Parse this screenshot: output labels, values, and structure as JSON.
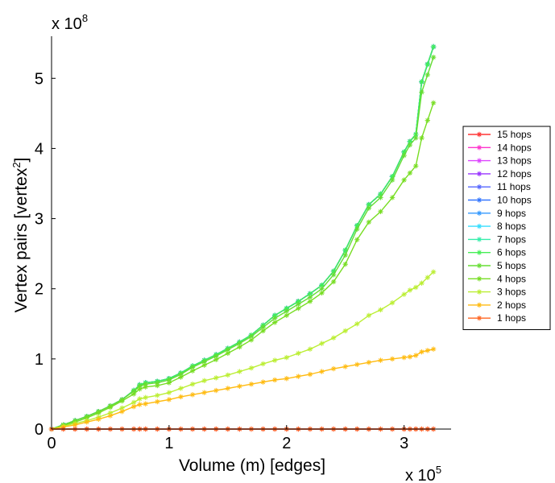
{
  "chart_data": {
    "type": "line",
    "title": "",
    "xlabel": "Volume (m) [edges]",
    "ylabel": "Vertex pairs [vertex",
    "ylabel_sup": "2",
    "ylabel_end": "]",
    "x_exponent_label": "x 10",
    "x_exponent": "5",
    "y_exponent_label": "x 10",
    "y_exponent": "8",
    "xlim": [
      0,
      3.4
    ],
    "ylim": [
      0,
      5.6
    ],
    "xticks": [
      0,
      1,
      2,
      3
    ],
    "xtick_labels": [
      "0",
      "1",
      "2",
      "3"
    ],
    "yticks": [
      0,
      1,
      2,
      3,
      4,
      5
    ],
    "ytick_labels": [
      "0",
      "1",
      "2",
      "3",
      "4",
      "5"
    ],
    "x": [
      0,
      0.1,
      0.2,
      0.3,
      0.4,
      0.5,
      0.6,
      0.7,
      0.75,
      0.8,
      0.9,
      1.0,
      1.1,
      1.2,
      1.3,
      1.4,
      1.5,
      1.6,
      1.7,
      1.8,
      1.9,
      2.0,
      2.1,
      2.2,
      2.3,
      2.4,
      2.5,
      2.6,
      2.7,
      2.8,
      2.9,
      3.0,
      3.05,
      3.1,
      3.15,
      3.2,
      3.25
    ],
    "series": [
      {
        "name": "15 hops",
        "color": "#ff3333",
        "values": [
          0,
          0,
          0,
          0,
          0,
          0,
          0,
          0,
          0,
          0,
          0,
          0,
          0,
          0,
          0,
          0,
          0,
          0,
          0,
          0,
          0,
          0,
          0,
          0,
          0,
          0,
          0,
          0,
          0,
          0,
          0,
          0,
          0,
          0,
          0,
          0,
          0
        ]
      },
      {
        "name": "14 hops",
        "color": "#ff33cc",
        "values": [
          0,
          0.06,
          0.12,
          0.18,
          0.25,
          0.33,
          0.42,
          0.55,
          0.63,
          0.66,
          0.68,
          0.72,
          0.8,
          0.9,
          0.98,
          1.06,
          1.15,
          1.24,
          1.34,
          1.48,
          1.62,
          1.72,
          1.82,
          1.93,
          2.05,
          2.25,
          2.55,
          2.9,
          3.2,
          3.35,
          3.6,
          3.95,
          4.1,
          4.2,
          4.95,
          5.2,
          5.45
        ]
      },
      {
        "name": "13 hops",
        "color": "#dd44ff",
        "values": [
          0,
          0.06,
          0.12,
          0.18,
          0.25,
          0.33,
          0.42,
          0.55,
          0.63,
          0.66,
          0.68,
          0.72,
          0.8,
          0.9,
          0.98,
          1.06,
          1.15,
          1.24,
          1.34,
          1.48,
          1.62,
          1.72,
          1.82,
          1.93,
          2.05,
          2.25,
          2.55,
          2.9,
          3.2,
          3.35,
          3.6,
          3.95,
          4.1,
          4.2,
          4.95,
          5.2,
          5.45
        ]
      },
      {
        "name": "12 hops",
        "color": "#9933ff",
        "values": [
          0,
          0.06,
          0.12,
          0.18,
          0.25,
          0.33,
          0.42,
          0.55,
          0.63,
          0.66,
          0.68,
          0.72,
          0.8,
          0.9,
          0.98,
          1.06,
          1.15,
          1.24,
          1.34,
          1.48,
          1.62,
          1.72,
          1.82,
          1.93,
          2.05,
          2.25,
          2.55,
          2.9,
          3.2,
          3.35,
          3.6,
          3.95,
          4.1,
          4.2,
          4.95,
          5.2,
          5.45
        ]
      },
      {
        "name": "11 hops",
        "color": "#5566ff",
        "values": [
          0,
          0.06,
          0.12,
          0.18,
          0.25,
          0.33,
          0.42,
          0.55,
          0.63,
          0.66,
          0.68,
          0.72,
          0.8,
          0.9,
          0.98,
          1.06,
          1.15,
          1.24,
          1.34,
          1.48,
          1.62,
          1.72,
          1.82,
          1.93,
          2.05,
          2.25,
          2.55,
          2.9,
          3.2,
          3.35,
          3.6,
          3.95,
          4.1,
          4.2,
          4.95,
          5.2,
          5.45
        ]
      },
      {
        "name": "10 hops",
        "color": "#3377ff",
        "values": [
          0,
          0.06,
          0.12,
          0.18,
          0.25,
          0.33,
          0.42,
          0.55,
          0.63,
          0.66,
          0.68,
          0.72,
          0.8,
          0.9,
          0.98,
          1.06,
          1.15,
          1.24,
          1.34,
          1.48,
          1.62,
          1.72,
          1.82,
          1.93,
          2.05,
          2.25,
          2.55,
          2.9,
          3.2,
          3.35,
          3.6,
          3.95,
          4.1,
          4.2,
          4.95,
          5.2,
          5.45
        ]
      },
      {
        "name": "9 hops",
        "color": "#3399ff",
        "values": [
          0,
          0.06,
          0.12,
          0.18,
          0.25,
          0.33,
          0.42,
          0.55,
          0.63,
          0.66,
          0.68,
          0.72,
          0.8,
          0.9,
          0.98,
          1.06,
          1.15,
          1.24,
          1.34,
          1.48,
          1.62,
          1.72,
          1.82,
          1.93,
          2.05,
          2.25,
          2.55,
          2.9,
          3.2,
          3.35,
          3.6,
          3.95,
          4.1,
          4.2,
          4.95,
          5.2,
          5.45
        ]
      },
      {
        "name": "8 hops",
        "color": "#33ddff",
        "values": [
          0,
          0.06,
          0.12,
          0.18,
          0.25,
          0.33,
          0.42,
          0.55,
          0.63,
          0.66,
          0.68,
          0.72,
          0.8,
          0.9,
          0.98,
          1.06,
          1.15,
          1.24,
          1.34,
          1.48,
          1.62,
          1.72,
          1.82,
          1.93,
          2.05,
          2.25,
          2.55,
          2.9,
          3.2,
          3.35,
          3.6,
          3.95,
          4.1,
          4.2,
          4.95,
          5.2,
          5.45
        ]
      },
      {
        "name": "7 hops",
        "color": "#33eeaa",
        "values": [
          0,
          0.06,
          0.12,
          0.18,
          0.25,
          0.33,
          0.42,
          0.55,
          0.63,
          0.66,
          0.68,
          0.72,
          0.8,
          0.9,
          0.98,
          1.06,
          1.15,
          1.24,
          1.34,
          1.48,
          1.62,
          1.72,
          1.82,
          1.93,
          2.05,
          2.25,
          2.55,
          2.9,
          3.2,
          3.35,
          3.6,
          3.95,
          4.1,
          4.2,
          4.95,
          5.2,
          5.45
        ]
      },
      {
        "name": "6 hops",
        "color": "#44ee55",
        "values": [
          0,
          0.06,
          0.12,
          0.18,
          0.25,
          0.33,
          0.42,
          0.55,
          0.63,
          0.66,
          0.68,
          0.72,
          0.8,
          0.9,
          0.98,
          1.06,
          1.15,
          1.24,
          1.34,
          1.48,
          1.62,
          1.72,
          1.82,
          1.93,
          2.05,
          2.25,
          2.55,
          2.9,
          3.2,
          3.35,
          3.6,
          3.95,
          4.1,
          4.2,
          4.95,
          5.2,
          5.45
        ]
      },
      {
        "name": "5 hops",
        "color": "#66dd33",
        "values": [
          0,
          0.06,
          0.12,
          0.18,
          0.25,
          0.33,
          0.42,
          0.54,
          0.61,
          0.64,
          0.66,
          0.7,
          0.78,
          0.88,
          0.96,
          1.04,
          1.13,
          1.22,
          1.32,
          1.45,
          1.58,
          1.68,
          1.78,
          1.88,
          2.0,
          2.2,
          2.48,
          2.85,
          3.15,
          3.3,
          3.55,
          3.9,
          4.05,
          4.15,
          4.8,
          5.05,
          5.3
        ]
      },
      {
        "name": "4 hops",
        "color": "#77dd22",
        "values": [
          0,
          0.05,
          0.1,
          0.16,
          0.23,
          0.31,
          0.4,
          0.5,
          0.57,
          0.6,
          0.62,
          0.66,
          0.74,
          0.83,
          0.91,
          0.99,
          1.08,
          1.17,
          1.27,
          1.4,
          1.52,
          1.62,
          1.72,
          1.82,
          1.94,
          2.1,
          2.35,
          2.7,
          2.95,
          3.1,
          3.3,
          3.55,
          3.65,
          3.75,
          4.15,
          4.4,
          4.65
        ]
      },
      {
        "name": "3 hops",
        "color": "#bbee33",
        "values": [
          0,
          0.04,
          0.08,
          0.12,
          0.17,
          0.23,
          0.3,
          0.38,
          0.43,
          0.45,
          0.48,
          0.52,
          0.58,
          0.64,
          0.69,
          0.73,
          0.77,
          0.82,
          0.87,
          0.93,
          0.98,
          1.02,
          1.08,
          1.14,
          1.22,
          1.3,
          1.4,
          1.5,
          1.62,
          1.7,
          1.8,
          1.92,
          1.98,
          2.02,
          2.08,
          2.16,
          2.24
        ]
      },
      {
        "name": "2 hops",
        "color": "#ffbb11",
        "values": [
          0,
          0.03,
          0.06,
          0.1,
          0.14,
          0.19,
          0.25,
          0.32,
          0.35,
          0.36,
          0.39,
          0.42,
          0.46,
          0.49,
          0.52,
          0.55,
          0.58,
          0.61,
          0.64,
          0.67,
          0.7,
          0.72,
          0.75,
          0.78,
          0.82,
          0.86,
          0.89,
          0.92,
          0.95,
          0.98,
          1.0,
          1.02,
          1.03,
          1.05,
          1.1,
          1.12,
          1.14
        ]
      },
      {
        "name": "1 hops",
        "color": "#ff6622",
        "values": [
          0,
          0,
          0,
          0,
          0,
          0,
          0,
          0,
          0,
          0,
          0,
          0,
          0,
          0,
          0,
          0,
          0,
          0,
          0,
          0,
          0,
          0,
          0,
          0,
          0,
          0,
          0,
          0,
          0,
          0,
          0,
          0,
          0,
          0,
          0,
          0,
          0
        ]
      }
    ],
    "legend_position": "right"
  }
}
